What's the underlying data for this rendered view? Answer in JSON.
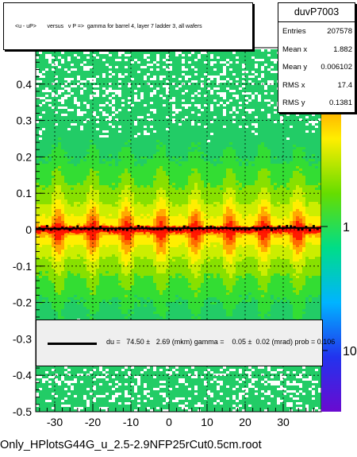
{
  "title_text": "<u - uP>       versus   v P =>  gamma for barrel 4, layer 7 ladder 3, all wafers",
  "stats": {
    "name": "duvP7003",
    "rows": [
      {
        "key": "Entries",
        "value": "207578"
      },
      {
        "key": "Mean x",
        "value": "1.882"
      },
      {
        "key": "Mean y",
        "value": "0.006102"
      },
      {
        "key": "RMS x",
        "value": "17.4"
      },
      {
        "key": "RMS y",
        "value": "0.1381"
      }
    ]
  },
  "fit_text": "du =   74.50 ±   2.69 (mkm) gamma =    0.05 ±  0.02 (mrad) prob = 0.106",
  "footer_text": "Only_HPlotsG44G_u_2.5-2.9NFP25rCut0.5cm.root",
  "colors": {
    "frame": "#000000",
    "fit_box_bg": "#efefef",
    "profile": "#000000",
    "band_core": "#ff0000"
  },
  "chart_data": {
    "type": "heatmap",
    "title": "<u - uP>       versus   v P =>  gamma for barrel 4, layer 7 ladder 3, all wafers",
    "xlabel": "",
    "ylabel": "",
    "xlim": [
      -35,
      40
    ],
    "ylim": [
      -0.5,
      0.5
    ],
    "x_ticks": [
      -30,
      -20,
      -10,
      0,
      10,
      20,
      30
    ],
    "y_ticks": [
      -0.5,
      -0.4,
      -0.3,
      -0.2,
      -0.1,
      0,
      0.1,
      0.2,
      0.3,
      0.4
    ],
    "x_tick_labels": [
      "-30",
      "-20",
      "-10",
      "0",
      "10",
      "20",
      "30"
    ],
    "y_tick_labels": [
      "-0.5",
      "-0.4",
      "-0.3",
      "-0.2",
      "-0.1",
      "0",
      "0.1",
      "0.2",
      "0.3",
      "0.4"
    ],
    "data_x_range": [
      -35,
      40
    ],
    "density_peak_y": 0.0,
    "color_scale": "log",
    "z_tick_labels": [
      "10",
      "1",
      "10"
    ],
    "fit_line": {
      "slope_label": "du = 74.50 ± 2.69 (mkm)",
      "y_at_x": [
        [
          -35,
          0.003
        ],
        [
          40,
          0.005
        ]
      ]
    },
    "grid": true
  }
}
